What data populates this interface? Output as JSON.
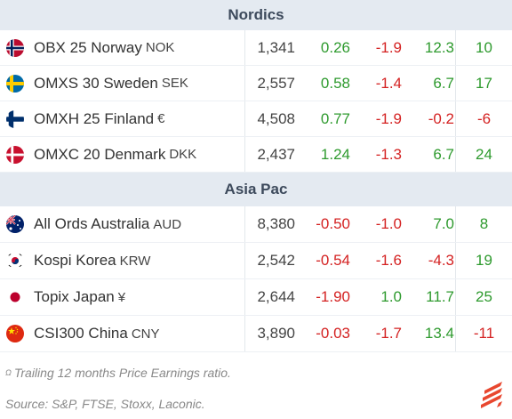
{
  "sections": [
    {
      "title": "Nordics",
      "rows": [
        {
          "flag": "norway-flag-icon",
          "name": "OBX 25 Norway",
          "currency": "NOK",
          "level": "1,341",
          "c1": "0.26",
          "c2": "-1.9",
          "c3": "12.3",
          "pe": "10"
        },
        {
          "flag": "sweden-flag-icon",
          "name": "OMXS 30 Sweden",
          "currency": "SEK",
          "level": "2,557",
          "c1": "0.58",
          "c2": "-1.4",
          "c3": "6.7",
          "pe": "17"
        },
        {
          "flag": "finland-flag-icon",
          "name": "OMXH 25 Finland",
          "currency": "€",
          "level": "4,508",
          "c1": "0.77",
          "c2": "-1.9",
          "c3": "-0.2",
          "pe": "-6"
        },
        {
          "flag": "denmark-flag-icon",
          "name": "OMXC 20 Denmark",
          "currency": "DKK",
          "level": "2,437",
          "c1": "1.24",
          "c2": "-1.3",
          "c3": "6.7",
          "pe": "24"
        }
      ]
    },
    {
      "title": "Asia Pac",
      "rows": [
        {
          "flag": "australia-flag-icon",
          "name": "All Ords Australia",
          "currency": "AUD",
          "level": "8,380",
          "c1": "-0.50",
          "c2": "-1.0",
          "c3": "7.0",
          "pe": "8"
        },
        {
          "flag": "south-korea-flag-icon",
          "name": "Kospi Korea",
          "currency": "KRW",
          "level": "2,542",
          "c1": "-0.54",
          "c2": "-1.6",
          "c3": "-4.3",
          "pe": "19"
        },
        {
          "flag": "japan-flag-icon",
          "name": "Topix Japan",
          "currency": "¥",
          "level": "2,644",
          "c1": "-1.90",
          "c2": "1.0",
          "c3": "11.7",
          "pe": "25"
        },
        {
          "flag": "china-flag-icon",
          "name": "CSI300 China",
          "currency": "CNY",
          "level": "3,890",
          "c1": "-0.03",
          "c2": "-1.7",
          "c3": "13.4",
          "pe": "-11"
        }
      ]
    }
  ],
  "footer": {
    "note_marker": "Ω",
    "note": "Trailing 12 months Price Earnings ratio.",
    "source": "Source: S&P, FTSE, Stoxx, Laconic."
  },
  "colors": {
    "positive": "#2e9a2e",
    "negative": "#d42222",
    "header_bg": "#e4eaf1",
    "logo": "#e8472f"
  },
  "logo_icon": "laconic-logo-icon"
}
